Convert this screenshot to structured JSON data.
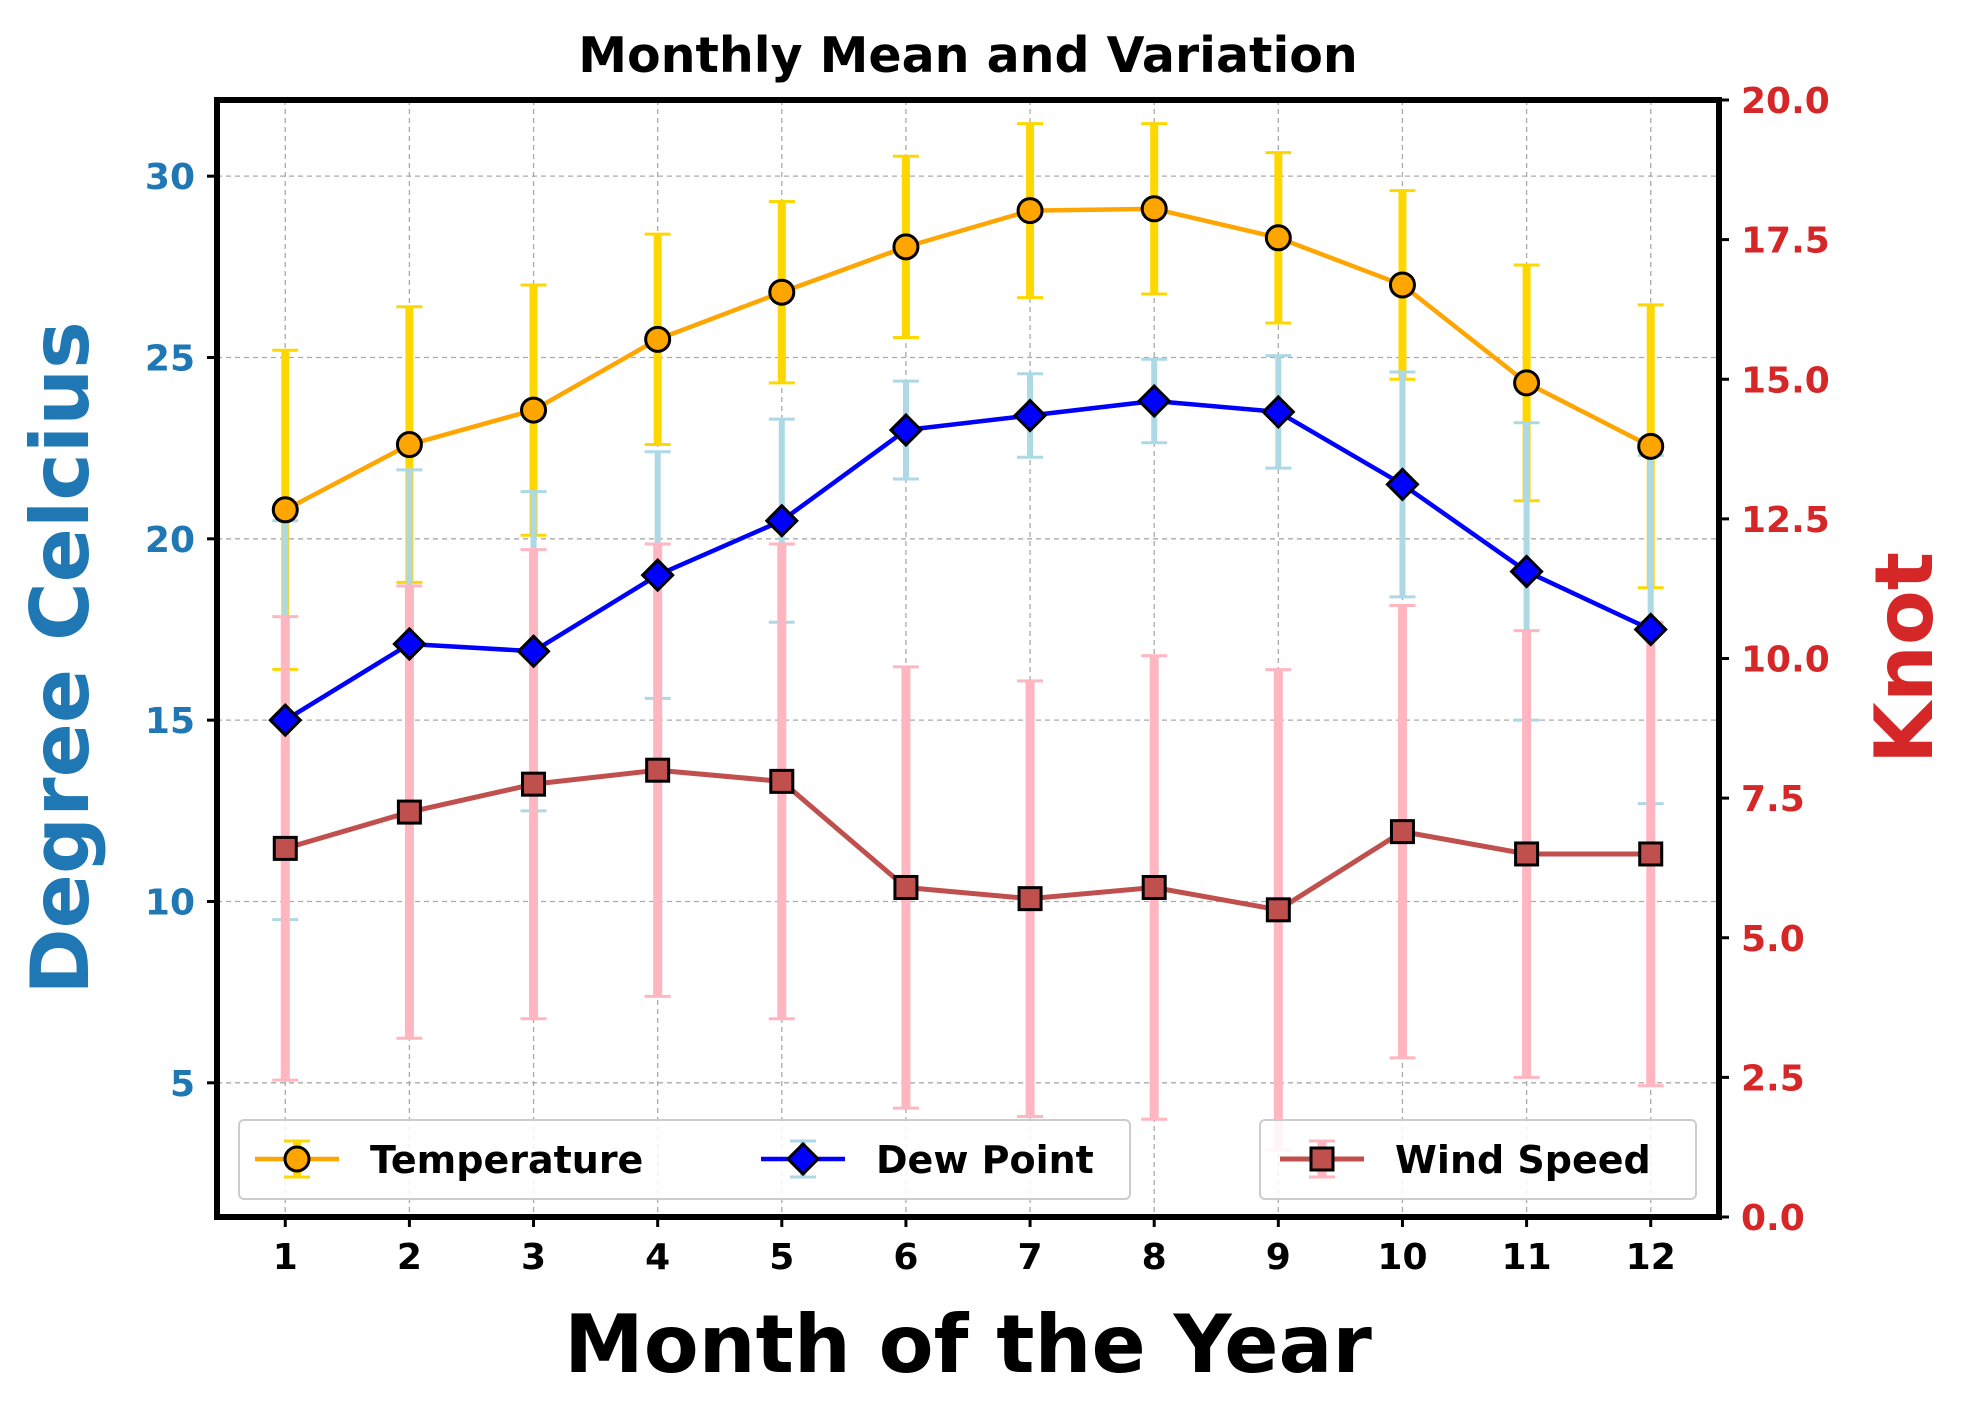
{
  "chart_data": {
    "type": "line",
    "title": "Monthly Mean and Variation",
    "xlabel": "Month of the Year",
    "ylabel_left": "Degree Celcius",
    "ylabel_right": "Knot",
    "x": [
      1,
      2,
      3,
      4,
      5,
      6,
      7,
      8,
      9,
      10,
      11,
      12
    ],
    "xlim": [
      0.45,
      12.55
    ],
    "ylim_left": [
      1.3,
      32.1
    ],
    "ylim_right": [
      0,
      20
    ],
    "yticks_left": [
      5,
      10,
      15,
      20,
      25,
      30
    ],
    "yticks_right": [
      "0.0",
      "2.5",
      "5.0",
      "7.5",
      "10.0",
      "12.5",
      "15.0",
      "17.5",
      "20.0"
    ],
    "grid": true,
    "legend_left": "lower-left",
    "legend_right": "lower-right",
    "colors": {
      "left_axis": "#1f77b4",
      "right_axis": "#d62728",
      "temperature_line": "#ffa500",
      "temperature_error": "#ffd700",
      "dew_line": "#0000ff",
      "dew_error": "#add8e6",
      "wind_line": "#c0504d",
      "wind_error": "#ffb6c1",
      "grid": "#aaaaaa"
    },
    "series": [
      {
        "name": "Temperature",
        "axis": "left",
        "marker": "circle",
        "values": [
          20.8,
          22.6,
          23.55,
          25.5,
          26.8,
          28.05,
          29.05,
          29.1,
          28.3,
          27.0,
          24.3,
          22.55
        ],
        "error": [
          4.4,
          3.8,
          3.45,
          2.9,
          2.5,
          2.5,
          2.4,
          2.35,
          2.35,
          2.6,
          3.25,
          3.9
        ]
      },
      {
        "name": "Dew Point",
        "axis": "left",
        "marker": "diamond",
        "values": [
          15.0,
          17.1,
          16.9,
          19.0,
          20.5,
          23.0,
          23.4,
          23.8,
          23.5,
          21.5,
          19.1,
          17.5
        ],
        "error": [
          5.5,
          4.8,
          4.4,
          3.4,
          2.8,
          1.35,
          1.15,
          1.15,
          1.55,
          3.1,
          4.1,
          4.8
        ]
      },
      {
        "name": "Wind Speed",
        "axis": "right",
        "marker": "square",
        "values": [
          6.6,
          7.25,
          7.75,
          8.0,
          7.8,
          5.9,
          5.7,
          5.9,
          5.5,
          6.9,
          6.5,
          6.5
        ],
        "error": [
          4.15,
          4.05,
          4.2,
          4.05,
          4.25,
          3.95,
          3.9,
          4.15,
          4.3,
          4.05,
          4.0,
          4.15
        ]
      }
    ]
  }
}
